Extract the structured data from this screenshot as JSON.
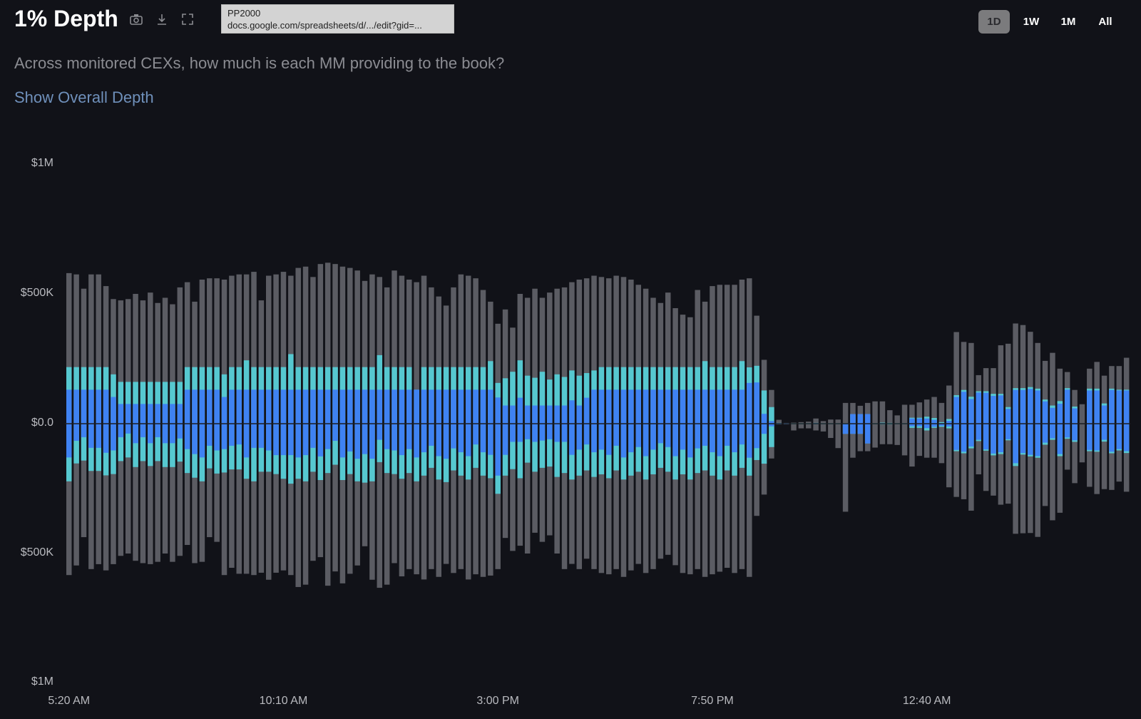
{
  "header": {
    "title": "1% Depth",
    "subtitle": "Across monitored CEXs, how much is each MM providing to the book?",
    "toggle_link": "Show Overall Depth",
    "icons": [
      "camera-icon",
      "download-icon",
      "expand-icon"
    ]
  },
  "tooltip": {
    "line1": "PP2000",
    "line2": "docs.google.com/spreadsheets/d/.../edit?gid=..."
  },
  "time_ranges": [
    {
      "label": "1D",
      "active": true
    },
    {
      "label": "1W",
      "active": false
    },
    {
      "label": "1M",
      "active": false
    },
    {
      "label": "All",
      "active": false
    }
  ],
  "chart_data": {
    "type": "bar",
    "stacked": true,
    "units": "$K",
    "interval": "10 min",
    "ylim": [
      -1000,
      1000
    ],
    "y_ticks": [
      {
        "value": 1000,
        "label": "$1M"
      },
      {
        "value": 500,
        "label": "$500K"
      },
      {
        "value": 0,
        "label": "$0.0"
      },
      {
        "value": -500,
        "label": "$500K"
      },
      {
        "value": -1000,
        "label": "$1M"
      }
    ],
    "x_ticks": [
      {
        "index": 0,
        "label": "5:20 AM"
      },
      {
        "index": 29,
        "label": "10:10 AM"
      },
      {
        "index": 58,
        "label": "3:00 PM"
      },
      {
        "index": 87,
        "label": "7:50 PM"
      },
      {
        "index": 116,
        "label": "12:40 AM"
      }
    ],
    "colors": {
      "outer": "#5b5c63",
      "middle": "#56c8d0",
      "inner": "#3f82f2",
      "zero_line": "#1b1c22"
    },
    "grid": false,
    "legend": "none",
    "bid_inner": [
      131,
      131,
      131,
      131,
      131,
      131,
      103,
      76,
      76,
      76,
      76,
      76,
      76,
      76,
      76,
      76,
      131,
      131,
      131,
      131,
      131,
      103,
      131,
      131,
      131,
      131,
      131,
      131,
      131,
      131,
      131,
      131,
      131,
      131,
      131,
      131,
      131,
      131,
      131,
      131,
      131,
      131,
      131,
      131,
      131,
      131,
      131,
      131,
      131,
      131,
      131,
      131,
      131,
      131,
      131,
      131,
      131,
      131,
      101,
      70,
      70,
      100,
      70,
      70,
      70,
      70,
      70,
      70,
      90,
      70,
      100,
      131,
      131,
      131,
      131,
      131,
      131,
      131,
      131,
      131,
      131,
      131,
      131,
      131,
      131,
      131,
      131,
      131,
      131,
      131,
      131,
      131,
      157,
      159,
      38,
      10,
      2,
      2,
      1,
      1,
      1,
      2,
      1,
      1,
      1,
      1,
      37,
      37,
      37,
      1,
      2,
      1,
      1,
      1,
      20,
      20,
      20,
      15,
      2,
      11,
      103,
      123,
      95,
      120,
      119,
      107,
      109,
      57,
      130,
      130,
      134,
      128,
      86,
      61,
      77,
      131,
      59,
      0,
      128,
      128,
      70,
      130,
      128,
      128
    ],
    "bid_middle": [
      218,
      218,
      218,
      218,
      218,
      218,
      190,
      161,
      161,
      161,
      161,
      161,
      161,
      161,
      161,
      161,
      218,
      218,
      218,
      218,
      218,
      190,
      218,
      218,
      244,
      218,
      218,
      218,
      218,
      218,
      268,
      218,
      218,
      218,
      218,
      218,
      218,
      218,
      218,
      218,
      218,
      218,
      264,
      218,
      218,
      218,
      218,
      131,
      218,
      218,
      218,
      218,
      218,
      218,
      218,
      218,
      218,
      241,
      157,
      175,
      200,
      244,
      185,
      177,
      200,
      170,
      190,
      180,
      205,
      185,
      195,
      205,
      218,
      218,
      218,
      218,
      218,
      218,
      218,
      218,
      218,
      218,
      218,
      218,
      218,
      218,
      241,
      218,
      218,
      218,
      218,
      241,
      217,
      223,
      128,
      64,
      3,
      2,
      2,
      2,
      2,
      3,
      2,
      2,
      2,
      2,
      37,
      37,
      37,
      2,
      4,
      3,
      2,
      2,
      23,
      23,
      27,
      22,
      6,
      18,
      110,
      130,
      104,
      125,
      125,
      115,
      115,
      64,
      137,
      137,
      141,
      135,
      93,
      70,
      87,
      137,
      66,
      0,
      135,
      135,
      78,
      135,
      131,
      131
    ],
    "bid_outer": [
      580,
      575,
      520,
      575,
      575,
      530,
      480,
      475,
      480,
      500,
      475,
      505,
      465,
      485,
      460,
      525,
      545,
      470,
      555,
      560,
      560,
      555,
      570,
      575,
      575,
      585,
      475,
      570,
      575,
      585,
      570,
      600,
      605,
      565,
      615,
      620,
      615,
      605,
      600,
      590,
      550,
      575,
      565,
      525,
      590,
      570,
      555,
      545,
      570,
      525,
      490,
      455,
      525,
      575,
      570,
      560,
      515,
      470,
      385,
      440,
      370,
      500,
      485,
      520,
      485,
      505,
      520,
      525,
      545,
      555,
      560,
      570,
      565,
      560,
      570,
      565,
      555,
      535,
      520,
      485,
      465,
      505,
      445,
      420,
      410,
      515,
      470,
      530,
      535,
      535,
      535,
      555,
      560,
      416,
      246,
      130,
      15,
      3,
      4,
      6,
      8,
      20,
      10,
      16,
      16,
      80,
      80,
      69,
      80,
      86,
      86,
      52,
      32,
      73,
      73,
      82,
      93,
      103,
      80,
      147,
      353,
      315,
      311,
      187,
      214,
      214,
      302,
      308,
      386,
      380,
      354,
      311,
      242,
      273,
      212,
      199,
      130,
      75,
      212,
      238,
      185,
      222,
      222,
      254
    ],
    "ask_inner": [
      130,
      66,
      52,
      93,
      93,
      112,
      103,
      52,
      38,
      75,
      52,
      75,
      52,
      75,
      75,
      57,
      98,
      117,
      130,
      85,
      103,
      98,
      85,
      80,
      130,
      93,
      93,
      103,
      121,
      121,
      121,
      130,
      121,
      93,
      126,
      98,
      66,
      130,
      107,
      135,
      117,
      135,
      62,
      98,
      103,
      121,
      98,
      130,
      110,
      85,
      125,
      135,
      95,
      110,
      125,
      80,
      110,
      120,
      200,
      120,
      70,
      70,
      60,
      70,
      65,
      60,
      70,
      70,
      120,
      100,
      80,
      110,
      100,
      120,
      85,
      130,
      110,
      90,
      125,
      100,
      75,
      90,
      125,
      100,
      130,
      95,
      85,
      110,
      125,
      85,
      110,
      80,
      131,
      94,
      39,
      10,
      2,
      2,
      1,
      1,
      1,
      1,
      1,
      1,
      1,
      39,
      39,
      39,
      76,
      1,
      1,
      1,
      1,
      1,
      10,
      10,
      17,
      12,
      8,
      11,
      101,
      108,
      88,
      62,
      99,
      115,
      110,
      60,
      152,
      113,
      120,
      125,
      73,
      56,
      117,
      53,
      64,
      0,
      101,
      103,
      62,
      108,
      98,
      106
    ],
    "ask_middle": [
      222,
      153,
      142,
      182,
      182,
      199,
      194,
      144,
      130,
      167,
      144,
      163,
      144,
      167,
      167,
      146,
      190,
      208,
      222,
      172,
      192,
      188,
      176,
      176,
      212,
      222,
      185,
      185,
      194,
      212,
      231,
      212,
      222,
      185,
      217,
      190,
      158,
      217,
      194,
      222,
      227,
      222,
      148,
      190,
      194,
      212,
      190,
      222,
      200,
      170,
      215,
      225,
      180,
      200,
      215,
      170,
      200,
      210,
      270,
      200,
      175,
      210,
      150,
      185,
      170,
      165,
      205,
      190,
      215,
      200,
      180,
      205,
      195,
      210,
      180,
      215,
      200,
      185,
      215,
      195,
      170,
      185,
      215,
      195,
      215,
      190,
      180,
      200,
      215,
      180,
      200,
      170,
      200,
      140,
      154,
      90,
      2,
      2,
      2,
      2,
      2,
      2,
      2,
      2,
      2,
      39,
      39,
      39,
      76,
      2,
      3,
      3,
      2,
      2,
      16,
      16,
      26,
      16,
      12,
      18,
      106,
      114,
      95,
      67,
      104,
      122,
      117,
      64,
      163,
      119,
      126,
      131,
      81,
      62,
      125,
      58,
      70,
      0,
      106,
      108,
      69,
      114,
      103,
      113
    ],
    "ask_outer": [
      583,
      546,
      437,
      560,
      541,
      565,
      541,
      509,
      500,
      528,
      537,
      541,
      532,
      500,
      532,
      509,
      467,
      537,
      532,
      437,
      455,
      583,
      555,
      578,
      578,
      583,
      574,
      601,
      574,
      565,
      583,
      629,
      620,
      528,
      514,
      624,
      569,
      615,
      578,
      546,
      472,
      601,
      632,
      620,
      537,
      588,
      560,
      580,
      600,
      560,
      590,
      540,
      575,
      560,
      600,
      580,
      590,
      585,
      560,
      440,
      490,
      470,
      500,
      420,
      455,
      430,
      500,
      560,
      540,
      560,
      520,
      560,
      575,
      580,
      560,
      590,
      565,
      540,
      575,
      560,
      520,
      505,
      545,
      575,
      580,
      560,
      590,
      580,
      570,
      555,
      575,
      560,
      590,
      355,
      273,
      134,
      3,
      3,
      26,
      18,
      18,
      26,
      30,
      55,
      94,
      339,
      131,
      106,
      106,
      92,
      79,
      79,
      82,
      122,
      165,
      124,
      131,
      131,
      152,
      245,
      282,
      291,
      335,
      195,
      259,
      277,
      312,
      308,
      424,
      422,
      421,
      436,
      317,
      372,
      343,
      177,
      229,
      149,
      243,
      271,
      252,
      255,
      223,
      262
    ]
  }
}
